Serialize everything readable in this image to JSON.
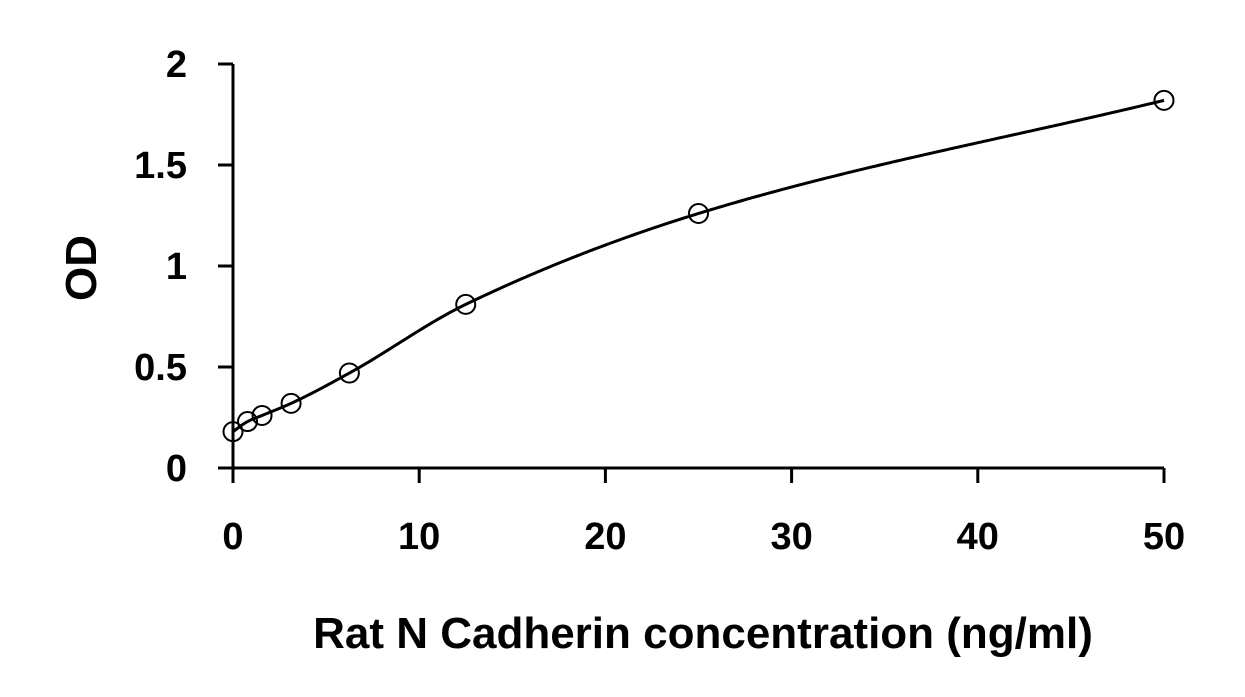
{
  "chart_data": {
    "type": "scatter",
    "xlabel": "Rat N Cadherin concentration (ng/ml)",
    "ylabel": "OD",
    "xlim": [
      0,
      50
    ],
    "ylim": [
      0,
      2
    ],
    "xticks": [
      0,
      10,
      20,
      30,
      40,
      50
    ],
    "yticks": [
      0,
      0.5,
      1,
      1.5,
      2
    ],
    "x_tick_labels": [
      "0",
      "10",
      "20",
      "30",
      "40",
      "50"
    ],
    "y_tick_labels": [
      "0",
      "0.5",
      "1",
      "1.5",
      "2"
    ],
    "grid": false,
    "legend": "none",
    "series": [
      {
        "marker": "open-circle",
        "trendline": "smooth-curve",
        "x": [
          0,
          0.78,
          1.56,
          3.12,
          6.25,
          12.5,
          25,
          50
        ],
        "y": [
          0.18,
          0.23,
          0.26,
          0.32,
          0.47,
          0.81,
          1.26,
          1.82
        ]
      }
    ],
    "colors": {
      "axis": "#000000",
      "marker_stroke": "#000000",
      "curve": "#000000"
    }
  }
}
